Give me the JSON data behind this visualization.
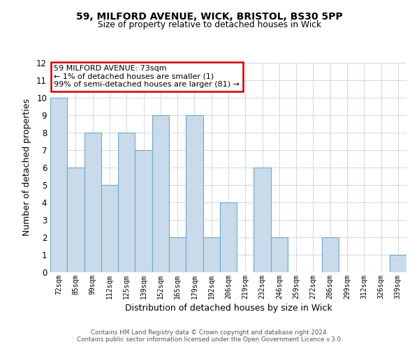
{
  "title1": "59, MILFORD AVENUE, WICK, BRISTOL, BS30 5PP",
  "title2": "Size of property relative to detached houses in Wick",
  "xlabel": "Distribution of detached houses by size in Wick",
  "ylabel": "Number of detached properties",
  "categories": [
    "72sqm",
    "85sqm",
    "99sqm",
    "112sqm",
    "125sqm",
    "139sqm",
    "152sqm",
    "165sqm",
    "179sqm",
    "192sqm",
    "206sqm",
    "219sqm",
    "232sqm",
    "246sqm",
    "259sqm",
    "272sqm",
    "286sqm",
    "299sqm",
    "312sqm",
    "326sqm",
    "339sqm"
  ],
  "values": [
    10,
    6,
    8,
    5,
    8,
    7,
    9,
    2,
    9,
    2,
    4,
    0,
    6,
    2,
    0,
    0,
    2,
    0,
    0,
    0,
    1
  ],
  "bar_color": "#c9daea",
  "bar_edge_color": "#6fa8c8",
  "ylim": [
    0,
    12
  ],
  "yticks": [
    0,
    1,
    2,
    3,
    4,
    5,
    6,
    7,
    8,
    9,
    10,
    11,
    12
  ],
  "annotation_line1": "59 MILFORD AVENUE: 73sqm",
  "annotation_line2": "← 1% of detached houses are smaller (1)",
  "annotation_line3": "99% of semi-detached houses are larger (81) →",
  "annotation_box_color": "#ffffff",
  "annotation_box_edge_color": "#cc0000",
  "footer1": "Contains HM Land Registry data © Crown copyright and database right 2024.",
  "footer2": "Contains public sector information licensed under the Open Government Licence v.3.0.",
  "bg_color": "#ffffff",
  "grid_color": "#d0d8e4"
}
